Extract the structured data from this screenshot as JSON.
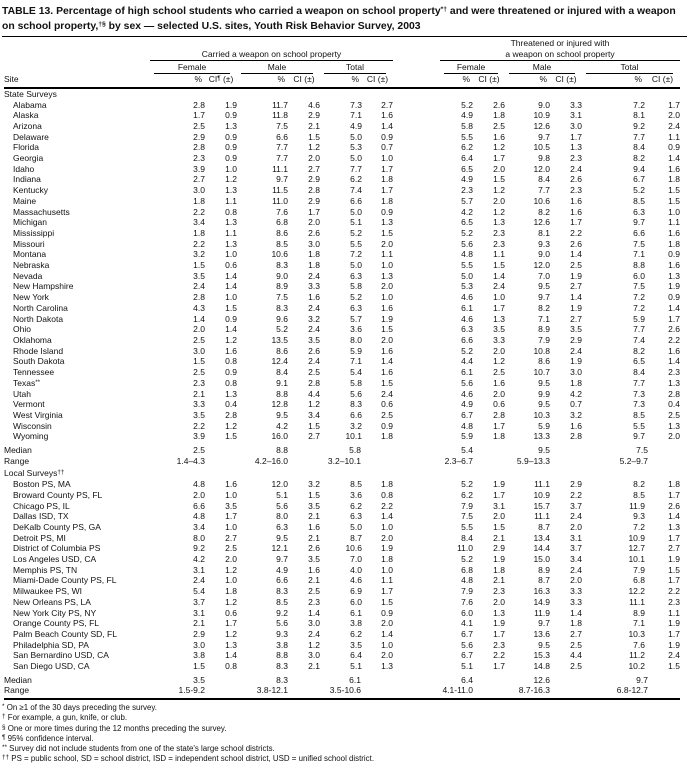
{
  "title": {
    "pre": "TABLE 13. Percentage of high school students who carried a weapon on school property",
    "sup1": "*†",
    "mid": " and were threatened or injured with a weapon on school property,",
    "sup2": "†§",
    "post": " by sex — selected U.S. sites, Youth Risk Behavior Survey, 2003"
  },
  "columns": {
    "site": "Site",
    "group1": "Carried a weapon on school property",
    "group2_line1": "Threatened or injured with",
    "group2_line2": "a weapon on school property",
    "sex": [
      "Female",
      "Male",
      "Total"
    ],
    "pct": "%",
    "ci": "CI (±)",
    "ci_first": {
      "pre": "CI",
      "sup": "¶",
      "post": " (±)"
    }
  },
  "sections": [
    {
      "label": "State Surveys",
      "rows": [
        {
          "site": "Alabama",
          "values": [
            "2.8",
            "1.9",
            "11.7",
            "4.6",
            "7.3",
            "2.7",
            "5.2",
            "2.6",
            "9.0",
            "3.3",
            "7.2",
            "1.7"
          ]
        },
        {
          "site": "Alaska",
          "values": [
            "1.7",
            "0.9",
            "11.8",
            "2.9",
            "7.1",
            "1.6",
            "4.9",
            "1.8",
            "10.9",
            "3.1",
            "8.1",
            "2.0"
          ]
        },
        {
          "site": "Arizona",
          "values": [
            "2.5",
            "1.3",
            "7.5",
            "2.1",
            "4.9",
            "1.4",
            "5.8",
            "2.5",
            "12.6",
            "3.0",
            "9.2",
            "2.4"
          ]
        },
        {
          "site": "Delaware",
          "values": [
            "2.9",
            "0.9",
            "6.6",
            "1.5",
            "5.0",
            "0.9",
            "5.5",
            "1.6",
            "9.7",
            "1.7",
            "7.7",
            "1.1"
          ]
        },
        {
          "site": "Florida",
          "values": [
            "2.8",
            "0.9",
            "7.7",
            "1.2",
            "5.3",
            "0.7",
            "6.2",
            "1.2",
            "10.5",
            "1.3",
            "8.4",
            "0.9"
          ]
        },
        {
          "site": "Georgia",
          "values": [
            "2.3",
            "0.9",
            "7.7",
            "2.0",
            "5.0",
            "1.0",
            "6.4",
            "1.7",
            "9.8",
            "2.3",
            "8.2",
            "1.4"
          ]
        },
        {
          "site": "Idaho",
          "values": [
            "3.9",
            "1.0",
            "11.1",
            "2.7",
            "7.7",
            "1.7",
            "6.5",
            "2.0",
            "12.0",
            "2.4",
            "9.4",
            "1.6"
          ]
        },
        {
          "site": "Indiana",
          "values": [
            "2.7",
            "1.2",
            "9.7",
            "2.9",
            "6.2",
            "1.8",
            "4.9",
            "1.5",
            "8.4",
            "2.6",
            "6.7",
            "1.8"
          ]
        },
        {
          "site": "Kentucky",
          "values": [
            "3.0",
            "1.3",
            "11.5",
            "2.8",
            "7.4",
            "1.7",
            "2.3",
            "1.2",
            "7.7",
            "2.3",
            "5.2",
            "1.5"
          ]
        },
        {
          "site": "Maine",
          "values": [
            "1.8",
            "1.1",
            "11.0",
            "2.9",
            "6.6",
            "1.8",
            "5.7",
            "2.0",
            "10.6",
            "1.6",
            "8.5",
            "1.5"
          ]
        },
        {
          "site": "Massachusetts",
          "values": [
            "2.2",
            "0.8",
            "7.6",
            "1.7",
            "5.0",
            "0.9",
            "4.2",
            "1.2",
            "8.2",
            "1.6",
            "6.3",
            "1.0"
          ]
        },
        {
          "site": "Michigan",
          "values": [
            "3.4",
            "1.3",
            "6.8",
            "2.0",
            "5.1",
            "1.3",
            "6.5",
            "1.3",
            "12.6",
            "1.7",
            "9.7",
            "1.1"
          ]
        },
        {
          "site": "Mississippi",
          "values": [
            "1.8",
            "1.1",
            "8.6",
            "2.6",
            "5.2",
            "1.5",
            "5.2",
            "2.3",
            "8.1",
            "2.2",
            "6.6",
            "1.6"
          ]
        },
        {
          "site": "Missouri",
          "values": [
            "2.2",
            "1.3",
            "8.5",
            "3.0",
            "5.5",
            "2.0",
            "5.6",
            "2.3",
            "9.3",
            "2.6",
            "7.5",
            "1.8"
          ]
        },
        {
          "site": "Montana",
          "values": [
            "3.2",
            "1.0",
            "10.6",
            "1.8",
            "7.2",
            "1.1",
            "4.8",
            "1.1",
            "9.0",
            "1.4",
            "7.1",
            "0.9"
          ]
        },
        {
          "site": "Nebraska",
          "values": [
            "1.5",
            "0.6",
            "8.3",
            "1.8",
            "5.0",
            "1.0",
            "5.5",
            "1.5",
            "12.0",
            "2.5",
            "8.8",
            "1.6"
          ]
        },
        {
          "site": "Nevada",
          "values": [
            "3.5",
            "1.4",
            "9.0",
            "2.4",
            "6.3",
            "1.3",
            "5.0",
            "1.4",
            "7.0",
            "1.9",
            "6.0",
            "1.3"
          ]
        },
        {
          "site": "New Hampshire",
          "values": [
            "2.4",
            "1.4",
            "8.9",
            "3.3",
            "5.8",
            "2.0",
            "5.3",
            "2.4",
            "9.5",
            "2.7",
            "7.5",
            "1.9"
          ]
        },
        {
          "site": "New York",
          "values": [
            "2.8",
            "1.0",
            "7.5",
            "1.6",
            "5.2",
            "1.0",
            "4.6",
            "1.0",
            "9.7",
            "1.4",
            "7.2",
            "0.9"
          ]
        },
        {
          "site": "North Carolina",
          "values": [
            "4.3",
            "1.5",
            "8.3",
            "2.4",
            "6.3",
            "1.6",
            "6.1",
            "1.7",
            "8.2",
            "1.9",
            "7.2",
            "1.4"
          ]
        },
        {
          "site": "North Dakota",
          "values": [
            "1.4",
            "0.9",
            "9.6",
            "3.2",
            "5.7",
            "1.9",
            "4.6",
            "1.3",
            "7.1",
            "2.7",
            "5.9",
            "1.7"
          ]
        },
        {
          "site": "Ohio",
          "values": [
            "2.0",
            "1.4",
            "5.2",
            "2.4",
            "3.6",
            "1.5",
            "6.3",
            "3.5",
            "8.9",
            "3.5",
            "7.7",
            "2.6"
          ]
        },
        {
          "site": "Oklahoma",
          "values": [
            "2.5",
            "1.2",
            "13.5",
            "3.5",
            "8.0",
            "2.0",
            "6.6",
            "3.3",
            "7.9",
            "2.9",
            "7.4",
            "2.2"
          ]
        },
        {
          "site": "Rhode Island",
          "values": [
            "3.0",
            "1.6",
            "8.6",
            "2.6",
            "5.9",
            "1.6",
            "5.2",
            "2.0",
            "10.8",
            "2.4",
            "8.2",
            "1.6"
          ]
        },
        {
          "site": "South Dakota",
          "values": [
            "1.5",
            "0.8",
            "12.4",
            "2.4",
            "7.1",
            "1.4",
            "4.4",
            "1.2",
            "8.6",
            "1.9",
            "6.5",
            "1.4"
          ]
        },
        {
          "site": "Tennessee",
          "values": [
            "2.5",
            "0.9",
            "8.4",
            "2.5",
            "5.4",
            "1.6",
            "6.1",
            "2.5",
            "10.7",
            "3.0",
            "8.4",
            "2.3"
          ]
        },
        {
          "site": "Texas**",
          "values": [
            "2.3",
            "0.8",
            "9.1",
            "2.8",
            "5.8",
            "1.5",
            "5.6",
            "1.6",
            "9.5",
            "1.8",
            "7.7",
            "1.3"
          ]
        },
        {
          "site": "Utah",
          "values": [
            "2.1",
            "1.3",
            "8.8",
            "4.4",
            "5.6",
            "2.4",
            "4.6",
            "2.0",
            "9.9",
            "4.2",
            "7.3",
            "2.8"
          ]
        },
        {
          "site": "Vermont",
          "values": [
            "3.3",
            "0.4",
            "12.8",
            "1.2",
            "8.3",
            "0.6",
            "4.9",
            "0.6",
            "9.5",
            "0.7",
            "7.3",
            "0.4"
          ]
        },
        {
          "site": "West Virginia",
          "values": [
            "3.5",
            "2.8",
            "9.5",
            "3.4",
            "6.6",
            "2.5",
            "6.7",
            "2.8",
            "10.3",
            "3.2",
            "8.5",
            "2.5"
          ]
        },
        {
          "site": "Wisconsin",
          "values": [
            "2.2",
            "1.2",
            "4.2",
            "1.5",
            "3.2",
            "0.9",
            "4.8",
            "1.7",
            "5.9",
            "1.6",
            "5.5",
            "1.3"
          ]
        },
        {
          "site": "Wyoming",
          "values": [
            "3.9",
            "1.5",
            "16.0",
            "2.7",
            "10.1",
            "1.8",
            "5.9",
            "1.8",
            "13.3",
            "2.8",
            "9.7",
            "2.0"
          ]
        }
      ],
      "summary": [
        {
          "site": "Median",
          "values": [
            "2.5",
            "8.8",
            "5.8",
            "5.4",
            "9.5",
            "7.5"
          ]
        },
        {
          "site": "Range",
          "values": [
            "1.4–4.3",
            "4.2–16.0",
            "3.2–10.1",
            "2.3–6.7",
            "5.9–13.3",
            "5.2–9.7"
          ]
        }
      ]
    },
    {
      "label": "Local Surveys††",
      "rows": [
        {
          "site": "Boston PS, MA",
          "values": [
            "4.8",
            "1.6",
            "12.0",
            "3.2",
            "8.5",
            "1.8",
            "5.2",
            "1.9",
            "11.1",
            "2.9",
            "8.2",
            "1.8"
          ]
        },
        {
          "site": "Broward County PS, FL",
          "values": [
            "2.0",
            "1.0",
            "5.1",
            "1.5",
            "3.6",
            "0.8",
            "6.2",
            "1.7",
            "10.9",
            "2.2",
            "8.5",
            "1.7"
          ]
        },
        {
          "site": "Chicago PS, IL",
          "values": [
            "6.6",
            "3.5",
            "5.6",
            "3.5",
            "6.2",
            "2.2",
            "7.9",
            "3.1",
            "15.7",
            "3.7",
            "11.9",
            "2.6"
          ]
        },
        {
          "site": "Dallas ISD, TX",
          "values": [
            "4.8",
            "1.7",
            "8.0",
            "2.1",
            "6.3",
            "1.4",
            "7.5",
            "2.0",
            "11.1",
            "2.4",
            "9.3",
            "1.4"
          ]
        },
        {
          "site": "DeKalb County PS, GA",
          "values": [
            "3.4",
            "1.0",
            "6.3",
            "1.6",
            "5.0",
            "1.0",
            "5.5",
            "1.5",
            "8.7",
            "2.0",
            "7.2",
            "1.3"
          ]
        },
        {
          "site": "Detroit PS, MI",
          "values": [
            "8.0",
            "2.7",
            "9.5",
            "2.1",
            "8.7",
            "2.0",
            "8.4",
            "2.1",
            "13.4",
            "3.1",
            "10.9",
            "1.7"
          ]
        },
        {
          "site": "District of Columbia PS",
          "values": [
            "9.2",
            "2.5",
            "12.1",
            "2.6",
            "10.6",
            "1.9",
            "11.0",
            "2.9",
            "14.4",
            "3.7",
            "12.7",
            "2.7"
          ]
        },
        {
          "site": "Los Angeles USD, CA",
          "values": [
            "4.2",
            "2.0",
            "9.7",
            "3.5",
            "7.0",
            "1.8",
            "5.2",
            "1.9",
            "15.0",
            "3.4",
            "10.1",
            "1.9"
          ]
        },
        {
          "site": "Memphis PS, TN",
          "values": [
            "3.1",
            "1.2",
            "4.9",
            "1.6",
            "4.0",
            "1.0",
            "6.8",
            "1.8",
            "8.9",
            "2.4",
            "7.9",
            "1.5"
          ]
        },
        {
          "site": "Miami-Dade County PS, FL",
          "values": [
            "2.4",
            "1.0",
            "6.6",
            "2.1",
            "4.6",
            "1.1",
            "4.8",
            "2.1",
            "8.7",
            "2.0",
            "6.8",
            "1.7"
          ]
        },
        {
          "site": "Milwaukee PS, WI",
          "values": [
            "5.4",
            "1.8",
            "8.3",
            "2.5",
            "6.9",
            "1.7",
            "7.9",
            "2.3",
            "16.3",
            "3.3",
            "12.2",
            "2.2"
          ]
        },
        {
          "site": "New Orleans PS, LA",
          "values": [
            "3.7",
            "1.2",
            "8.5",
            "2.3",
            "6.0",
            "1.5",
            "7.6",
            "2.0",
            "14.9",
            "3.3",
            "11.1",
            "2.3"
          ]
        },
        {
          "site": "New York City PS, NY",
          "values": [
            "3.1",
            "0.6",
            "9.2",
            "1.4",
            "6.1",
            "0.9",
            "6.0",
            "1.3",
            "11.9",
            "1.4",
            "8.9",
            "1.1"
          ]
        },
        {
          "site": "Orange County PS, FL",
          "values": [
            "2.1",
            "1.7",
            "5.6",
            "3.0",
            "3.8",
            "2.0",
            "4.1",
            "1.9",
            "9.7",
            "1.8",
            "7.1",
            "1.9"
          ]
        },
        {
          "site": "Palm Beach County SD, FL",
          "values": [
            "2.9",
            "1.2",
            "9.3",
            "2.4",
            "6.2",
            "1.4",
            "6.7",
            "1.7",
            "13.6",
            "2.7",
            "10.3",
            "1.7"
          ]
        },
        {
          "site": "Philadelphia SD, PA",
          "values": [
            "3.0",
            "1.3",
            "3.8",
            "1.2",
            "3.5",
            "1.0",
            "5.6",
            "2.3",
            "9.5",
            "2.5",
            "7.6",
            "1.9"
          ]
        },
        {
          "site": "San Bernardino USD, CA",
          "values": [
            "3.8",
            "1.4",
            "8.8",
            "3.0",
            "6.4",
            "2.0",
            "6.7",
            "2.2",
            "15.3",
            "4.4",
            "11.2",
            "2.4"
          ]
        },
        {
          "site": "San Diego USD, CA",
          "values": [
            "1.5",
            "0.8",
            "8.3",
            "2.1",
            "5.1",
            "1.3",
            "5.1",
            "1.7",
            "14.8",
            "2.5",
            "10.2",
            "1.5"
          ]
        }
      ],
      "summary": [
        {
          "site": "Median",
          "values": [
            "3.5",
            "8.3",
            "6.1",
            "6.4",
            "12.6",
            "9.7"
          ]
        },
        {
          "site": "Range",
          "values": [
            "1.5-9.2",
            "3.8-12.1",
            "3.5-10.6",
            "4.1-11.0",
            "8.7-16.3",
            "6.8-12.7"
          ]
        }
      ]
    }
  ],
  "footnotes": [
    {
      "marker": "*",
      "text": "On ≥1 of the 30 days preceding the survey."
    },
    {
      "marker": "†",
      "text": "For example, a gun, knife, or club."
    },
    {
      "marker": "§",
      "text": "One or more times during the 12 months preceding the survey."
    },
    {
      "marker": "¶",
      "text": "95% confidence interval."
    },
    {
      "marker": "**",
      "text": "Survey did not include students from one of the state's large school districts."
    },
    {
      "marker": "††",
      "text": "PS = public school, SD = school district, ISD = independent school district, USD = unified school district."
    }
  ]
}
